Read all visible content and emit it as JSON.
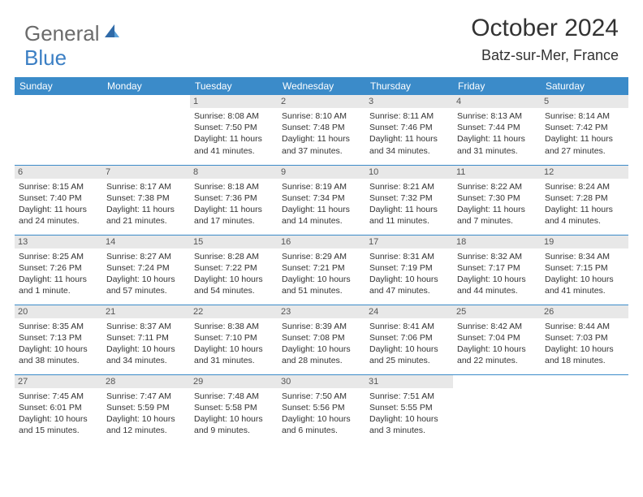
{
  "logo": {
    "part1": "General",
    "part2": "Blue"
  },
  "title": "October 2024",
  "location": "Batz-sur-Mer, France",
  "colors": {
    "header_bg": "#3b8bc9",
    "header_text": "#ffffff",
    "daynum_bg": "#e8e8e8",
    "border": "#3b8bc9",
    "logo_gray": "#6b6b6b",
    "logo_blue": "#3b7fc4",
    "body_text": "#333333",
    "background": "#ffffff"
  },
  "dayHeaders": [
    "Sunday",
    "Monday",
    "Tuesday",
    "Wednesday",
    "Thursday",
    "Friday",
    "Saturday"
  ],
  "weeks": [
    [
      {
        "num": "",
        "sunrise": "",
        "sunset": "",
        "daylight": "",
        "empty": true
      },
      {
        "num": "",
        "sunrise": "",
        "sunset": "",
        "daylight": "",
        "empty": true
      },
      {
        "num": "1",
        "sunrise": "Sunrise: 8:08 AM",
        "sunset": "Sunset: 7:50 PM",
        "daylight": "Daylight: 11 hours and 41 minutes."
      },
      {
        "num": "2",
        "sunrise": "Sunrise: 8:10 AM",
        "sunset": "Sunset: 7:48 PM",
        "daylight": "Daylight: 11 hours and 37 minutes."
      },
      {
        "num": "3",
        "sunrise": "Sunrise: 8:11 AM",
        "sunset": "Sunset: 7:46 PM",
        "daylight": "Daylight: 11 hours and 34 minutes."
      },
      {
        "num": "4",
        "sunrise": "Sunrise: 8:13 AM",
        "sunset": "Sunset: 7:44 PM",
        "daylight": "Daylight: 11 hours and 31 minutes."
      },
      {
        "num": "5",
        "sunrise": "Sunrise: 8:14 AM",
        "sunset": "Sunset: 7:42 PM",
        "daylight": "Daylight: 11 hours and 27 minutes."
      }
    ],
    [
      {
        "num": "6",
        "sunrise": "Sunrise: 8:15 AM",
        "sunset": "Sunset: 7:40 PM",
        "daylight": "Daylight: 11 hours and 24 minutes."
      },
      {
        "num": "7",
        "sunrise": "Sunrise: 8:17 AM",
        "sunset": "Sunset: 7:38 PM",
        "daylight": "Daylight: 11 hours and 21 minutes."
      },
      {
        "num": "8",
        "sunrise": "Sunrise: 8:18 AM",
        "sunset": "Sunset: 7:36 PM",
        "daylight": "Daylight: 11 hours and 17 minutes."
      },
      {
        "num": "9",
        "sunrise": "Sunrise: 8:19 AM",
        "sunset": "Sunset: 7:34 PM",
        "daylight": "Daylight: 11 hours and 14 minutes."
      },
      {
        "num": "10",
        "sunrise": "Sunrise: 8:21 AM",
        "sunset": "Sunset: 7:32 PM",
        "daylight": "Daylight: 11 hours and 11 minutes."
      },
      {
        "num": "11",
        "sunrise": "Sunrise: 8:22 AM",
        "sunset": "Sunset: 7:30 PM",
        "daylight": "Daylight: 11 hours and 7 minutes."
      },
      {
        "num": "12",
        "sunrise": "Sunrise: 8:24 AM",
        "sunset": "Sunset: 7:28 PM",
        "daylight": "Daylight: 11 hours and 4 minutes."
      }
    ],
    [
      {
        "num": "13",
        "sunrise": "Sunrise: 8:25 AM",
        "sunset": "Sunset: 7:26 PM",
        "daylight": "Daylight: 11 hours and 1 minute."
      },
      {
        "num": "14",
        "sunrise": "Sunrise: 8:27 AM",
        "sunset": "Sunset: 7:24 PM",
        "daylight": "Daylight: 10 hours and 57 minutes."
      },
      {
        "num": "15",
        "sunrise": "Sunrise: 8:28 AM",
        "sunset": "Sunset: 7:22 PM",
        "daylight": "Daylight: 10 hours and 54 minutes."
      },
      {
        "num": "16",
        "sunrise": "Sunrise: 8:29 AM",
        "sunset": "Sunset: 7:21 PM",
        "daylight": "Daylight: 10 hours and 51 minutes."
      },
      {
        "num": "17",
        "sunrise": "Sunrise: 8:31 AM",
        "sunset": "Sunset: 7:19 PM",
        "daylight": "Daylight: 10 hours and 47 minutes."
      },
      {
        "num": "18",
        "sunrise": "Sunrise: 8:32 AM",
        "sunset": "Sunset: 7:17 PM",
        "daylight": "Daylight: 10 hours and 44 minutes."
      },
      {
        "num": "19",
        "sunrise": "Sunrise: 8:34 AM",
        "sunset": "Sunset: 7:15 PM",
        "daylight": "Daylight: 10 hours and 41 minutes."
      }
    ],
    [
      {
        "num": "20",
        "sunrise": "Sunrise: 8:35 AM",
        "sunset": "Sunset: 7:13 PM",
        "daylight": "Daylight: 10 hours and 38 minutes."
      },
      {
        "num": "21",
        "sunrise": "Sunrise: 8:37 AM",
        "sunset": "Sunset: 7:11 PM",
        "daylight": "Daylight: 10 hours and 34 minutes."
      },
      {
        "num": "22",
        "sunrise": "Sunrise: 8:38 AM",
        "sunset": "Sunset: 7:10 PM",
        "daylight": "Daylight: 10 hours and 31 minutes."
      },
      {
        "num": "23",
        "sunrise": "Sunrise: 8:39 AM",
        "sunset": "Sunset: 7:08 PM",
        "daylight": "Daylight: 10 hours and 28 minutes."
      },
      {
        "num": "24",
        "sunrise": "Sunrise: 8:41 AM",
        "sunset": "Sunset: 7:06 PM",
        "daylight": "Daylight: 10 hours and 25 minutes."
      },
      {
        "num": "25",
        "sunrise": "Sunrise: 8:42 AM",
        "sunset": "Sunset: 7:04 PM",
        "daylight": "Daylight: 10 hours and 22 minutes."
      },
      {
        "num": "26",
        "sunrise": "Sunrise: 8:44 AM",
        "sunset": "Sunset: 7:03 PM",
        "daylight": "Daylight: 10 hours and 18 minutes."
      }
    ],
    [
      {
        "num": "27",
        "sunrise": "Sunrise: 7:45 AM",
        "sunset": "Sunset: 6:01 PM",
        "daylight": "Daylight: 10 hours and 15 minutes."
      },
      {
        "num": "28",
        "sunrise": "Sunrise: 7:47 AM",
        "sunset": "Sunset: 5:59 PM",
        "daylight": "Daylight: 10 hours and 12 minutes."
      },
      {
        "num": "29",
        "sunrise": "Sunrise: 7:48 AM",
        "sunset": "Sunset: 5:58 PM",
        "daylight": "Daylight: 10 hours and 9 minutes."
      },
      {
        "num": "30",
        "sunrise": "Sunrise: 7:50 AM",
        "sunset": "Sunset: 5:56 PM",
        "daylight": "Daylight: 10 hours and 6 minutes."
      },
      {
        "num": "31",
        "sunrise": "Sunrise: 7:51 AM",
        "sunset": "Sunset: 5:55 PM",
        "daylight": "Daylight: 10 hours and 3 minutes."
      },
      {
        "num": "",
        "sunrise": "",
        "sunset": "",
        "daylight": "",
        "empty": true
      },
      {
        "num": "",
        "sunrise": "",
        "sunset": "",
        "daylight": "",
        "empty": true
      }
    ]
  ]
}
